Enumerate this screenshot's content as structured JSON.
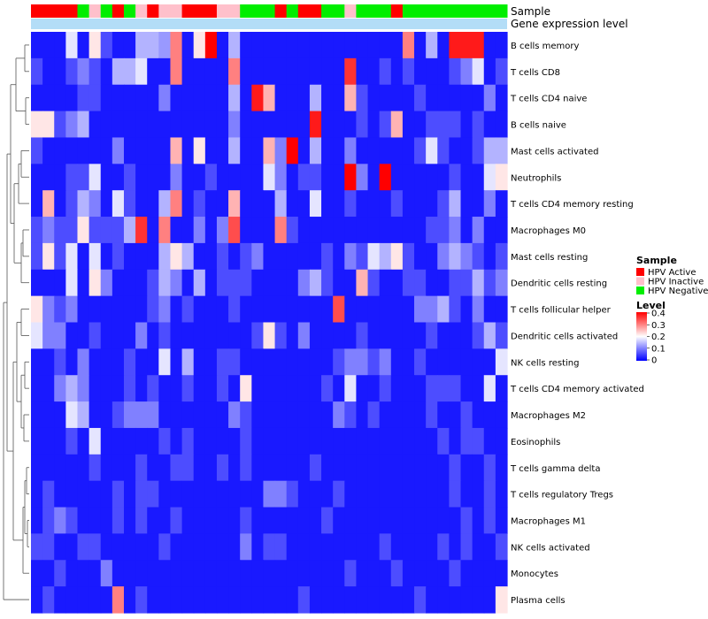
{
  "chart_data": {
    "type": "heatmap",
    "annotation_labels": [
      "Sample",
      "Gene expression level"
    ],
    "rows": [
      "B cells memory",
      "T cells CD8",
      "T cells CD4 naive",
      "B cells naive",
      "Mast cells activated",
      "Neutrophils",
      "T cells CD4 memory resting",
      "Macrophages M0",
      "Mast cells resting",
      "Dendritic cells resting",
      "T cells follicular helper",
      "Dendritic cells activated",
      "NK cells resting",
      "T cells CD4 memory activated",
      "Macrophages M2",
      "Eosinophils",
      "T cells gamma delta",
      "T cells regulatory  Tregs",
      "Macrophages M1",
      "NK cells activated",
      "Monocytes",
      "Plasma cells"
    ],
    "sample_groups": [
      "A",
      "A",
      "A",
      "A",
      "N",
      "I",
      "N",
      "A",
      "N",
      "I",
      "A",
      "I",
      "I",
      "A",
      "A",
      "A",
      "I",
      "I",
      "N",
      "N",
      "N",
      "A",
      "N",
      "A",
      "A",
      "N",
      "N",
      "I",
      "N",
      "N",
      "N",
      "A",
      "N",
      "N",
      "N",
      "N",
      "N",
      "N",
      "N",
      "N",
      "N"
    ],
    "legend": {
      "sample_title": "Sample",
      "sample_entries": [
        {
          "key": "A",
          "label": "HPV Active",
          "color": "#ff0000"
        },
        {
          "key": "I",
          "label": "HPV Inactive",
          "color": "#ffc0cb"
        },
        {
          "key": "N",
          "label": "HPV Negative",
          "color": "#00ee00"
        }
      ],
      "level_title": "Level",
      "level_ticks": [
        "0.4",
        "0.3",
        "0.2",
        "0.1",
        "0"
      ],
      "level_range": [
        0,
        0.4
      ]
    },
    "gene_expression_color": "#b3ddf7",
    "color_scale": {
      "low": "#0000ff",
      "mid": "#ffffff",
      "high": "#ff0000",
      "mid_value": 0.2
    },
    "values": [
      [
        0.02,
        0.02,
        0.02,
        0.18,
        0.02,
        0.22,
        0.06,
        0.02,
        0.02,
        0.14,
        0.14,
        0.12,
        0.3,
        0.02,
        0.22,
        0.4,
        0.02,
        0.14,
        0.02,
        0.02,
        0.02,
        0.02,
        0.02,
        0.02,
        0.02,
        0.02,
        0.02,
        0.02,
        0.02,
        0.02,
        0.02,
        0.02,
        0.3,
        0.02,
        0.14,
        0.02,
        0.38,
        0.38,
        0.38,
        0.02,
        0.02
      ],
      [
        0.06,
        0.02,
        0.02,
        0.06,
        0.1,
        0.06,
        0.02,
        0.14,
        0.14,
        0.18,
        0.02,
        0.02,
        0.3,
        0.02,
        0.02,
        0.02,
        0.02,
        0.3,
        0.02,
        0.02,
        0.02,
        0.02,
        0.02,
        0.02,
        0.02,
        0.02,
        0.02,
        0.36,
        0.02,
        0.02,
        0.06,
        0.02,
        0.06,
        0.02,
        0.02,
        0.02,
        0.06,
        0.1,
        0.18,
        0.02,
        0.06
      ],
      [
        0.02,
        0.02,
        0.02,
        0.02,
        0.06,
        0.06,
        0.02,
        0.02,
        0.02,
        0.02,
        0.02,
        0.1,
        0.02,
        0.02,
        0.02,
        0.02,
        0.02,
        0.14,
        0.02,
        0.38,
        0.26,
        0.02,
        0.02,
        0.02,
        0.14,
        0.02,
        0.02,
        0.26,
        0.06,
        0.02,
        0.02,
        0.02,
        0.02,
        0.06,
        0.02,
        0.02,
        0.02,
        0.02,
        0.02,
        0.1,
        0.02
      ],
      [
        0.22,
        0.22,
        0.06,
        0.1,
        0.14,
        0.02,
        0.02,
        0.02,
        0.02,
        0.02,
        0.02,
        0.02,
        0.02,
        0.02,
        0.02,
        0.02,
        0.02,
        0.1,
        0.02,
        0.02,
        0.02,
        0.02,
        0.02,
        0.02,
        0.38,
        0.02,
        0.02,
        0.02,
        0.06,
        0.02,
        0.06,
        0.26,
        0.02,
        0.02,
        0.06,
        0.06,
        0.06,
        0.02,
        0.06,
        0.02,
        0.02
      ],
      [
        0.06,
        0.02,
        0.02,
        0.02,
        0.02,
        0.02,
        0.02,
        0.1,
        0.02,
        0.02,
        0.02,
        0.02,
        0.26,
        0.02,
        0.22,
        0.02,
        0.02,
        0.14,
        0.02,
        0.02,
        0.26,
        0.1,
        0.4,
        0.02,
        0.14,
        0.02,
        0.02,
        0.1,
        0.02,
        0.02,
        0.02,
        0.02,
        0.02,
        0.06,
        0.18,
        0.06,
        0.02,
        0.02,
        0.06,
        0.14,
        0.14
      ],
      [
        0.02,
        0.02,
        0.02,
        0.06,
        0.06,
        0.18,
        0.02,
        0.02,
        0.06,
        0.02,
        0.02,
        0.02,
        0.1,
        0.02,
        0.02,
        0.06,
        0.02,
        0.02,
        0.02,
        0.02,
        0.18,
        0.1,
        0.02,
        0.06,
        0.06,
        0.02,
        0.02,
        0.4,
        0.1,
        0.02,
        0.4,
        0.02,
        0.02,
        0.02,
        0.02,
        0.02,
        0.06,
        0.02,
        0.02,
        0.18,
        0.22
      ],
      [
        0.02,
        0.26,
        0.02,
        0.06,
        0.14,
        0.1,
        0.02,
        0.18,
        0.06,
        0.02,
        0.02,
        0.14,
        0.3,
        0.02,
        0.06,
        0.02,
        0.02,
        0.26,
        0.02,
        0.02,
        0.02,
        0.14,
        0.02,
        0.02,
        0.18,
        0.02,
        0.02,
        0.06,
        0.02,
        0.02,
        0.02,
        0.06,
        0.02,
        0.02,
        0.02,
        0.06,
        0.14,
        0.02,
        0.02,
        0.1,
        0.02
      ],
      [
        0.06,
        0.1,
        0.06,
        0.06,
        0.22,
        0.06,
        0.06,
        0.06,
        0.14,
        0.36,
        0.02,
        0.3,
        0.02,
        0.02,
        0.1,
        0.02,
        0.1,
        0.34,
        0.02,
        0.02,
        0.02,
        0.3,
        0.06,
        0.02,
        0.02,
        0.02,
        0.02,
        0.02,
        0.02,
        0.02,
        0.02,
        0.02,
        0.02,
        0.02,
        0.06,
        0.06,
        0.1,
        0.02,
        0.1,
        0.02,
        0.02
      ],
      [
        0.06,
        0.22,
        0.06,
        0.18,
        0.02,
        0.18,
        0.02,
        0.06,
        0.02,
        0.02,
        0.02,
        0.14,
        0.22,
        0.14,
        0.02,
        0.02,
        0.06,
        0.02,
        0.06,
        0.1,
        0.02,
        0.02,
        0.02,
        0.02,
        0.02,
        0.06,
        0.02,
        0.1,
        0.06,
        0.18,
        0.14,
        0.22,
        0.06,
        0.02,
        0.02,
        0.1,
        0.14,
        0.1,
        0.06,
        0.02,
        0.06
      ],
      [
        0.02,
        0.02,
        0.02,
        0.18,
        0.02,
        0.22,
        0.1,
        0.02,
        0.02,
        0.02,
        0.06,
        0.14,
        0.1,
        0.02,
        0.14,
        0.02,
        0.06,
        0.06,
        0.06,
        0.02,
        0.02,
        0.02,
        0.02,
        0.1,
        0.14,
        0.06,
        0.02,
        0.02,
        0.26,
        0.06,
        0.02,
        0.02,
        0.06,
        0.06,
        0.02,
        0.02,
        0.06,
        0.06,
        0.14,
        0.06,
        0.1
      ],
      [
        0.22,
        0.1,
        0.06,
        0.1,
        0.02,
        0.02,
        0.02,
        0.02,
        0.02,
        0.02,
        0.06,
        0.1,
        0.02,
        0.06,
        0.02,
        0.02,
        0.02,
        0.06,
        0.02,
        0.02,
        0.02,
        0.02,
        0.02,
        0.02,
        0.02,
        0.02,
        0.34,
        0.02,
        0.02,
        0.02,
        0.02,
        0.02,
        0.02,
        0.1,
        0.1,
        0.14,
        0.06,
        0.02,
        0.1,
        0.02,
        0.02
      ],
      [
        0.18,
        0.1,
        0.1,
        0.02,
        0.02,
        0.06,
        0.02,
        0.02,
        0.02,
        0.1,
        0.02,
        0.06,
        0.02,
        0.02,
        0.02,
        0.02,
        0.02,
        0.02,
        0.02,
        0.06,
        0.22,
        0.06,
        0.02,
        0.1,
        0.02,
        0.02,
        0.02,
        0.02,
        0.06,
        0.02,
        0.02,
        0.02,
        0.02,
        0.02,
        0.06,
        0.02,
        0.02,
        0.02,
        0.06,
        0.14,
        0.06
      ],
      [
        0.02,
        0.02,
        0.06,
        0.02,
        0.1,
        0.02,
        0.02,
        0.02,
        0.06,
        0.02,
        0.02,
        0.18,
        0.02,
        0.14,
        0.02,
        0.02,
        0.06,
        0.06,
        0.02,
        0.02,
        0.02,
        0.02,
        0.02,
        0.02,
        0.02,
        0.02,
        0.06,
        0.1,
        0.1,
        0.06,
        0.1,
        0.02,
        0.02,
        0.06,
        0.02,
        0.02,
        0.02,
        0.02,
        0.02,
        0.02,
        0.18
      ],
      [
        0.02,
        0.02,
        0.1,
        0.14,
        0.1,
        0.02,
        0.02,
        0.02,
        0.06,
        0.02,
        0.06,
        0.02,
        0.02,
        0.06,
        0.02,
        0.02,
        0.06,
        0.02,
        0.22,
        0.02,
        0.02,
        0.02,
        0.02,
        0.02,
        0.02,
        0.06,
        0.02,
        0.18,
        0.02,
        0.02,
        0.06,
        0.02,
        0.02,
        0.02,
        0.06,
        0.06,
        0.06,
        0.02,
        0.02,
        0.18,
        0.02
      ],
      [
        0.02,
        0.02,
        0.02,
        0.18,
        0.14,
        0.02,
        0.02,
        0.06,
        0.1,
        0.1,
        0.1,
        0.02,
        0.02,
        0.02,
        0.02,
        0.02,
        0.02,
        0.1,
        0.06,
        0.02,
        0.02,
        0.02,
        0.02,
        0.02,
        0.02,
        0.02,
        0.1,
        0.06,
        0.02,
        0.06,
        0.02,
        0.02,
        0.02,
        0.02,
        0.06,
        0.02,
        0.02,
        0.06,
        0.02,
        0.02,
        0.02
      ],
      [
        0.02,
        0.02,
        0.02,
        0.06,
        0.02,
        0.18,
        0.02,
        0.02,
        0.02,
        0.02,
        0.02,
        0.06,
        0.02,
        0.06,
        0.02,
        0.02,
        0.02,
        0.02,
        0.06,
        0.02,
        0.02,
        0.02,
        0.02,
        0.02,
        0.02,
        0.02,
        0.02,
        0.02,
        0.02,
        0.02,
        0.02,
        0.02,
        0.02,
        0.02,
        0.02,
        0.06,
        0.02,
        0.06,
        0.06,
        0.02,
        0.02
      ],
      [
        0.02,
        0.02,
        0.02,
        0.02,
        0.02,
        0.06,
        0.02,
        0.02,
        0.02,
        0.06,
        0.02,
        0.02,
        0.06,
        0.06,
        0.02,
        0.02,
        0.06,
        0.02,
        0.06,
        0.02,
        0.02,
        0.02,
        0.02,
        0.02,
        0.06,
        0.02,
        0.02,
        0.02,
        0.02,
        0.02,
        0.02,
        0.02,
        0.02,
        0.02,
        0.02,
        0.02,
        0.06,
        0.02,
        0.02,
        0.06,
        0.02
      ],
      [
        0.02,
        0.06,
        0.02,
        0.02,
        0.02,
        0.02,
        0.02,
        0.06,
        0.02,
        0.06,
        0.06,
        0.02,
        0.02,
        0.02,
        0.02,
        0.02,
        0.02,
        0.02,
        0.02,
        0.02,
        0.1,
        0.1,
        0.06,
        0.02,
        0.02,
        0.02,
        0.06,
        0.02,
        0.02,
        0.02,
        0.02,
        0.02,
        0.02,
        0.02,
        0.02,
        0.02,
        0.06,
        0.02,
        0.02,
        0.06,
        0.02
      ],
      [
        0.02,
        0.06,
        0.1,
        0.06,
        0.02,
        0.02,
        0.02,
        0.06,
        0.02,
        0.06,
        0.02,
        0.02,
        0.06,
        0.02,
        0.02,
        0.02,
        0.02,
        0.02,
        0.06,
        0.02,
        0.02,
        0.02,
        0.02,
        0.02,
        0.02,
        0.06,
        0.02,
        0.02,
        0.02,
        0.02,
        0.02,
        0.02,
        0.02,
        0.02,
        0.02,
        0.02,
        0.02,
        0.06,
        0.02,
        0.06,
        0.02
      ],
      [
        0.06,
        0.06,
        0.02,
        0.02,
        0.06,
        0.06,
        0.02,
        0.02,
        0.02,
        0.02,
        0.02,
        0.06,
        0.02,
        0.02,
        0.02,
        0.02,
        0.02,
        0.02,
        0.1,
        0.02,
        0.06,
        0.06,
        0.02,
        0.02,
        0.02,
        0.02,
        0.02,
        0.02,
        0.02,
        0.02,
        0.06,
        0.02,
        0.02,
        0.02,
        0.02,
        0.06,
        0.02,
        0.06,
        0.02,
        0.02,
        0.06
      ],
      [
        0.02,
        0.02,
        0.06,
        0.02,
        0.02,
        0.02,
        0.1,
        0.02,
        0.02,
        0.02,
        0.02,
        0.02,
        0.02,
        0.02,
        0.02,
        0.02,
        0.02,
        0.02,
        0.02,
        0.02,
        0.02,
        0.02,
        0.02,
        0.02,
        0.02,
        0.02,
        0.02,
        0.06,
        0.02,
        0.02,
        0.02,
        0.06,
        0.02,
        0.02,
        0.02,
        0.02,
        0.06,
        0.02,
        0.02,
        0.02,
        0.02
      ],
      [
        0.02,
        0.06,
        0.02,
        0.02,
        0.02,
        0.02,
        0.02,
        0.3,
        0.02,
        0.06,
        0.02,
        0.02,
        0.02,
        0.02,
        0.02,
        0.02,
        0.02,
        0.02,
        0.02,
        0.02,
        0.02,
        0.02,
        0.02,
        0.06,
        0.02,
        0.02,
        0.02,
        0.02,
        0.02,
        0.02,
        0.02,
        0.02,
        0.02,
        0.06,
        0.02,
        0.02,
        0.02,
        0.02,
        0.02,
        0.02,
        0.22
      ]
    ]
  }
}
